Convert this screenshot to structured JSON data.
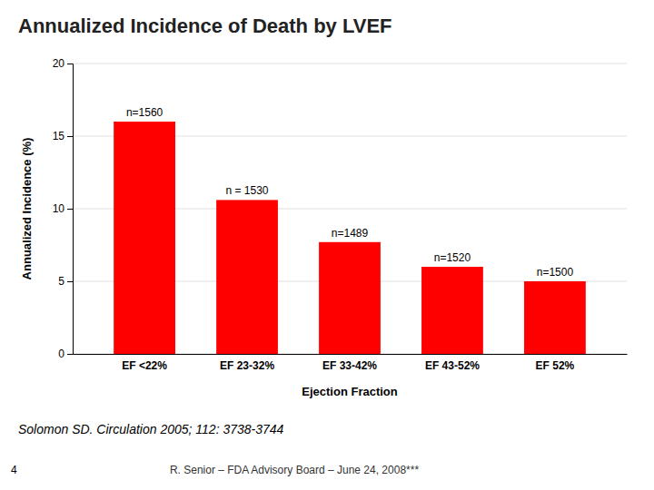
{
  "chart_data": {
    "type": "bar",
    "title": "Annualized Incidence of Death by LVEF",
    "categories": [
      "EF <22%",
      "EF 23-32%",
      "EF 33-42%",
      "EF 43-52%",
      "EF 52%"
    ],
    "values": [
      16.0,
      10.6,
      7.7,
      6.0,
      5.0
    ],
    "annotations": [
      "n=1560",
      "n = 1530",
      "n=1489",
      "n=1520",
      "n=1500"
    ],
    "color": "#FF0000",
    "xlabel": "Ejection Fraction",
    "ylabel": "Annualized Incidence (%)",
    "ylim": [
      0,
      20
    ],
    "yticks": [
      0,
      5,
      10,
      15,
      20
    ],
    "grid": true,
    "reference": "Solomon SD.  Circulation 2005; 112: 3738-3744",
    "footer_left": "4",
    "footer_center": "R. Senior – FDA Advisory Board – June 24, 2008***"
  }
}
